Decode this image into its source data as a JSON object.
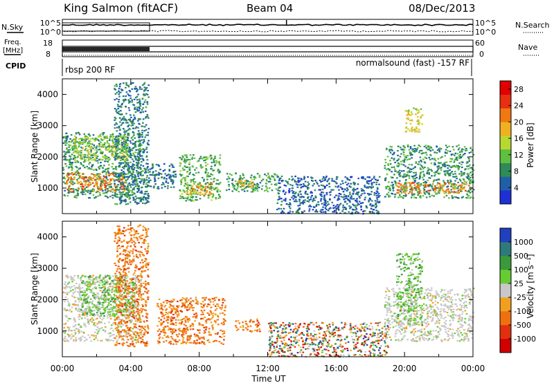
{
  "header": {
    "station": "King Salmon (fitACF)",
    "beam": "Beam 04",
    "date": "08/Dec/2013"
  },
  "top_panels": {
    "nsky_label": "N.Sky",
    "nsky_ticks": [
      "10^5",
      "10^0"
    ],
    "nsearch_label": "N.Search",
    "nsearch_ticks": [
      "10^5",
      "10^0"
    ],
    "freq_label_line1": "Freq.",
    "freq_label_line2": "[MHz]",
    "freq_ticks": [
      "18",
      "8"
    ],
    "nave_label": "Nave",
    "nave_ticks": [
      "60",
      "0"
    ],
    "cpid_label": "CPID",
    "cpid_left": "rbsp 200 RF",
    "cpid_right": "normalsound (fast) -157 RF"
  },
  "colors": {
    "power": [
      "#1f2fd6",
      "#1f5fa8",
      "#2e8b57",
      "#5fbf3f",
      "#b8d830",
      "#f0b020",
      "#f07810",
      "#e83010",
      "#e00000"
    ],
    "velocity": [
      "#2040c0",
      "#2e7a7a",
      "#3a9a3a",
      "#66cc33",
      "#c8c8c8",
      "#f0a020",
      "#f07010",
      "#e03010",
      "#d00000"
    ]
  },
  "chart_data": [
    {
      "type": "heatmap",
      "name": "power",
      "ylabel": "Slant Range [km]",
      "xlabel": "Time UT",
      "xlim_hours": [
        0,
        24
      ],
      "ylim_km": [
        180,
        4500
      ],
      "x_ticks": [
        "00:00",
        "04:00",
        "08:00",
        "12:00",
        "16:00",
        "20:00",
        "00:00"
      ],
      "y_ticks": [
        1000,
        2000,
        3000,
        4000
      ],
      "colorbar": {
        "label": "Power [dB]",
        "ticks": [
          4,
          8,
          12,
          16,
          20,
          24,
          28
        ],
        "range": [
          0,
          30
        ]
      },
      "regions": [
        {
          "t0": 0.0,
          "t1": 4.6,
          "r0": 700,
          "r1": 2800,
          "value": 8
        },
        {
          "t0": 0.2,
          "t1": 3.6,
          "r0": 900,
          "r1": 1500,
          "value": 22
        },
        {
          "t0": 0.5,
          "t1": 3.8,
          "r0": 1900,
          "r1": 2700,
          "value": 14
        },
        {
          "t0": 3.0,
          "t1": 5.0,
          "r0": 500,
          "r1": 4400,
          "value": 6
        },
        {
          "t0": 5.0,
          "t1": 6.6,
          "r0": 1000,
          "r1": 1800,
          "value": 5
        },
        {
          "t0": 6.8,
          "t1": 9.2,
          "r0": 600,
          "r1": 2100,
          "value": 10
        },
        {
          "t0": 7.2,
          "t1": 8.8,
          "r0": 800,
          "r1": 1200,
          "value": 20
        },
        {
          "t0": 9.5,
          "t1": 12.5,
          "r0": 900,
          "r1": 1500,
          "value": 9
        },
        {
          "t0": 10.1,
          "t1": 11.2,
          "r0": 1050,
          "r1": 1300,
          "value": 18
        },
        {
          "t0": 12.5,
          "t1": 18.5,
          "r0": 200,
          "r1": 1400,
          "value": 4
        },
        {
          "t0": 18.8,
          "t1": 24.0,
          "r0": 700,
          "r1": 2400,
          "value": 8
        },
        {
          "t0": 19.5,
          "t1": 24.0,
          "r0": 850,
          "r1": 1200,
          "value": 22
        },
        {
          "t0": 20.0,
          "t1": 21.0,
          "r0": 2800,
          "r1": 3600,
          "value": 16
        }
      ]
    },
    {
      "type": "heatmap",
      "name": "velocity",
      "ylabel": "Slant Range [km]",
      "xlabel": "Time UT",
      "xlim_hours": [
        0,
        24
      ],
      "ylim_km": [
        180,
        4500
      ],
      "x_ticks": [
        "00:00",
        "04:00",
        "08:00",
        "12:00",
        "16:00",
        "20:00",
        "00:00"
      ],
      "y_ticks": [
        1000,
        2000,
        3000,
        4000
      ],
      "colorbar": {
        "label": "Velocity [m s⁻¹]",
        "ticks": [
          "1000",
          "500",
          "100",
          "25",
          "-25",
          "-100",
          "-500",
          "-1000"
        ]
      },
      "regions": [
        {
          "t0": 0.0,
          "t1": 4.6,
          "r0": 700,
          "r1": 2800,
          "class": "gray"
        },
        {
          "t0": 1.0,
          "t1": 4.2,
          "r0": 1500,
          "r1": 2800,
          "class": "green"
        },
        {
          "t0": 3.0,
          "t1": 5.0,
          "r0": 500,
          "r1": 4400,
          "class": "orange"
        },
        {
          "t0": 5.5,
          "t1": 9.5,
          "r0": 600,
          "r1": 2100,
          "class": "orange"
        },
        {
          "t0": 10.0,
          "t1": 11.5,
          "r0": 1000,
          "r1": 1400,
          "class": "orange"
        },
        {
          "t0": 12.0,
          "t1": 19.0,
          "r0": 200,
          "r1": 1300,
          "class": "mixed"
        },
        {
          "t0": 18.8,
          "t1": 24.0,
          "r0": 700,
          "r1": 2400,
          "class": "gray"
        },
        {
          "t0": 19.5,
          "t1": 21.0,
          "r0": 1200,
          "r1": 3500,
          "class": "green"
        }
      ]
    }
  ]
}
